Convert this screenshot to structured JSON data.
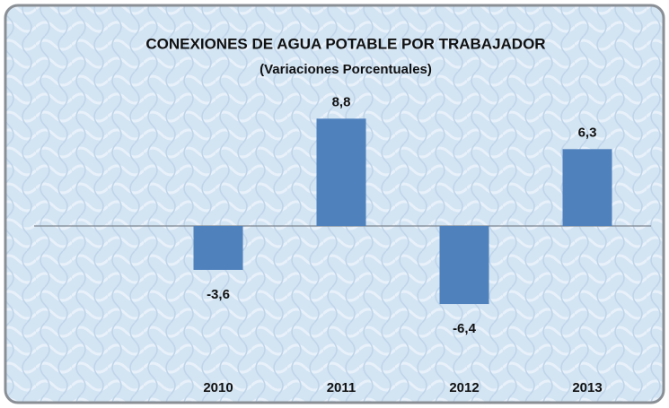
{
  "chart_data": {
    "type": "bar",
    "title": "CONEXIONES DE AGUA POTABLE POR TRABAJADOR",
    "subtitle": "(Variaciones Porcentuales)",
    "categories": [
      "2010",
      "2011",
      "2012",
      "2013"
    ],
    "values": [
      -3.6,
      8.8,
      -6.4,
      6.3
    ],
    "value_labels": [
      "-3,6",
      "8,8",
      "-6,4",
      "6,3"
    ],
    "color": "#4f81bd"
  }
}
